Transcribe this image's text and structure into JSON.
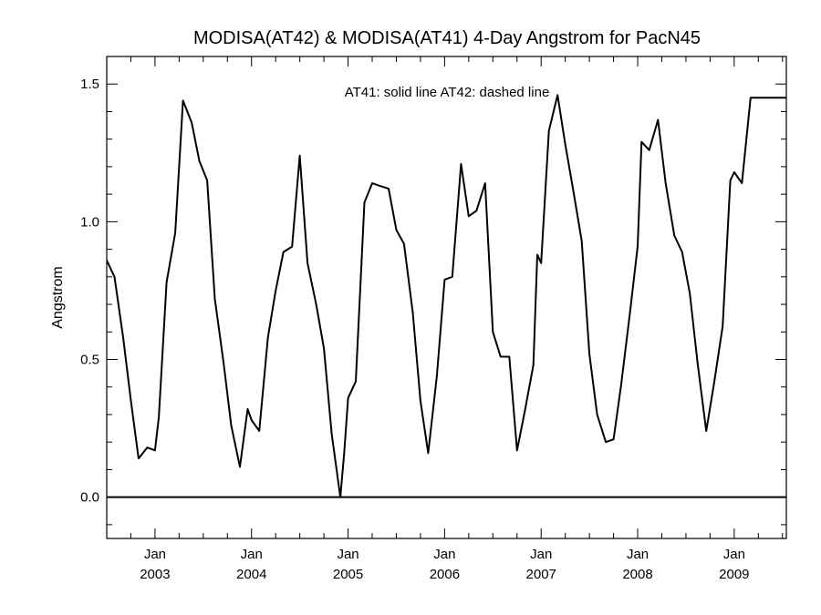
{
  "chart_data": {
    "type": "line",
    "title": "MODISA(AT42) & MODISA(AT41) 4-Day Angstrom for PacN45",
    "ylabel": "Angstrom",
    "xlabel": "",
    "annotation": "AT41: solid line   AT42: dashed line",
    "ylim": [
      -0.15,
      1.6
    ],
    "xlim": [
      2002.5,
      2009.54
    ],
    "yticks": [
      {
        "value": 0.0,
        "label": "0.0"
      },
      {
        "value": 0.5,
        "label": "0.5"
      },
      {
        "value": 1.0,
        "label": "1.0"
      },
      {
        "value": 1.5,
        "label": "1.5"
      }
    ],
    "xticks": [
      {
        "value": 2003.0,
        "month": "Jan",
        "year": "2003"
      },
      {
        "value": 2004.0,
        "month": "Jan",
        "year": "2004"
      },
      {
        "value": 2005.0,
        "month": "Jan",
        "year": "2005"
      },
      {
        "value": 2006.0,
        "month": "Jan",
        "year": "2006"
      },
      {
        "value": 2007.0,
        "month": "Jan",
        "year": "2007"
      },
      {
        "value": 2008.0,
        "month": "Jan",
        "year": "2008"
      },
      {
        "value": 2009.0,
        "month": "Jan",
        "year": "2009"
      }
    ],
    "reference_line": 0.0,
    "grid": false,
    "series": [
      {
        "style": "solid",
        "x": [
          2002.5,
          2002.58,
          2002.67,
          2002.75,
          2002.83,
          2002.92,
          2003.0,
          2003.04,
          2003.12,
          2003.21,
          2003.29,
          2003.38,
          2003.46,
          2003.54,
          2003.62,
          2003.71,
          2003.79,
          2003.88,
          2003.96,
          2004.0,
          2004.08,
          2004.17,
          2004.25,
          2004.33,
          2004.42,
          2004.5,
          2004.58,
          2004.67,
          2004.75,
          2004.83,
          2004.92,
          2004.96,
          2005.0,
          2005.08,
          2005.17,
          2005.25,
          2005.33,
          2005.42,
          2005.5,
          2005.58,
          2005.67,
          2005.75,
          2005.83,
          2005.92,
          2006.0,
          2006.08,
          2006.17,
          2006.25,
          2006.33,
          2006.42,
          2006.5,
          2006.58,
          2006.67,
          2006.75,
          2006.83,
          2006.92,
          2006.96,
          2007.0,
          2007.08,
          2007.17,
          2007.25,
          2007.33,
          2007.42,
          2007.5,
          2007.58,
          2007.67,
          2007.75,
          2007.83,
          2007.92,
          2008.0,
          2008.04,
          2008.12,
          2008.21,
          2008.29,
          2008.38,
          2008.46,
          2008.54,
          2008.62,
          2008.71,
          2008.79,
          2008.88,
          2008.96,
          2009.0,
          2009.08,
          2009.17,
          2009.25,
          2009.33,
          2009.42,
          2009.5,
          2009.54
        ],
        "y": [
          0.86,
          0.8,
          0.58,
          0.35,
          0.14,
          0.18,
          0.17,
          0.29,
          0.78,
          0.96,
          1.44,
          1.36,
          1.22,
          1.15,
          0.72,
          0.49,
          0.26,
          0.11,
          0.32,
          0.28,
          0.24,
          0.58,
          0.75,
          0.89,
          0.91,
          1.24,
          0.85,
          0.7,
          0.54,
          0.23,
          0.0,
          0.16,
          0.36,
          0.42,
          1.07,
          1.14,
          1.13,
          1.12,
          0.97,
          0.92,
          0.67,
          0.35,
          0.16,
          0.44,
          0.79,
          0.8,
          1.21,
          1.02,
          1.04,
          1.14,
          0.6,
          0.51,
          0.51,
          0.17,
          0.31,
          0.48,
          0.88,
          0.85,
          1.33,
          1.46,
          1.28,
          1.12,
          0.93,
          0.52,
          0.3,
          0.2,
          0.21,
          0.41,
          0.67,
          0.91,
          1.29,
          1.26,
          1.37,
          1.14,
          0.95,
          0.89,
          0.74,
          0.49,
          0.24,
          0.41,
          0.62,
          1.15,
          1.18,
          1.14,
          1.45,
          1.45,
          1.45,
          1.45,
          1.45,
          1.45
        ]
      }
    ]
  }
}
